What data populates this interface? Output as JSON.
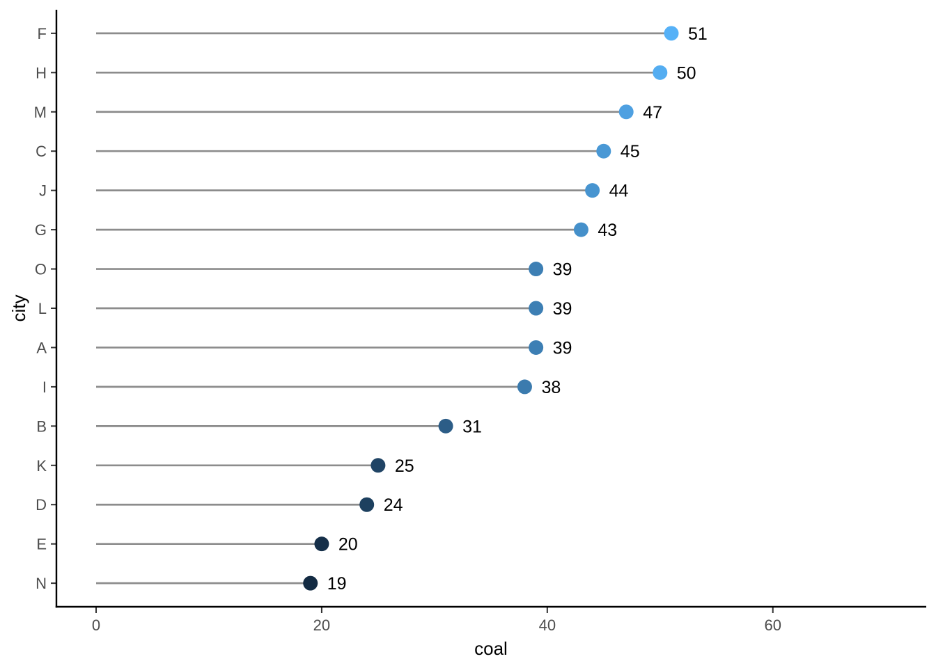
{
  "chart_data": {
    "type": "scatter",
    "variant": "lollipop",
    "title": "",
    "xlabel": "coal",
    "ylabel": "city",
    "categories": [
      "F",
      "H",
      "M",
      "C",
      "J",
      "G",
      "O",
      "L",
      "A",
      "I",
      "B",
      "K",
      "D",
      "E",
      "N"
    ],
    "values": [
      51,
      50,
      47,
      45,
      44,
      43,
      39,
      39,
      39,
      38,
      31,
      25,
      24,
      20,
      19
    ],
    "stem_start": 0,
    "xlim": [
      -3.52,
      73.6
    ],
    "xticks": [
      0,
      20,
      40,
      60
    ],
    "grid": false,
    "legend": "none",
    "colors": {
      "gradient_low": "#132B43",
      "gradient_high": "#56B1F7",
      "gradient_domain": [
        19,
        51
      ],
      "stem": "#8C8C8C",
      "axis_line": "#000000",
      "tick_mark": "#333333",
      "tick_label": "#4D4D4D",
      "axis_title": "#000000",
      "value_label": "#000000",
      "background": "#FFFFFF"
    }
  }
}
